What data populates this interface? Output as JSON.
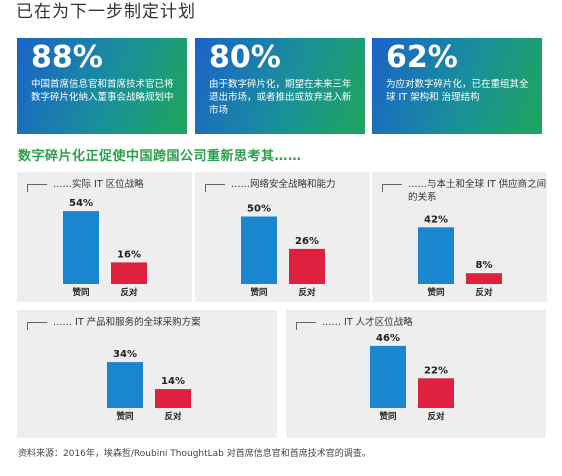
{
  "header": {
    "title": "已在为下一步制定计划"
  },
  "stats": [
    {
      "value": "88%",
      "text": "中国首席信息官和首席技术官已将数字碎片化纳入董事会战略规划中"
    },
    {
      "value": "80%",
      "text": "由于数字碎片化，期望在未来三年退出市场，或者推出或放弃进入新市场"
    },
    {
      "value": "62%",
      "text": "为应对数字碎片化，已在重组其全球 IT 架构和 治理结构"
    }
  ],
  "subtitle": "数字碎片化正促使中国跨国公司重新思考其……",
  "colors": {
    "agree": "#1a86d0",
    "oppose": "#e0203f",
    "subtitle": "#2aa14b"
  },
  "chart_data": [
    {
      "type": "bar",
      "title": "……实际 IT 区位战略",
      "categories": [
        "赞同",
        "反对"
      ],
      "values": [
        54,
        16
      ],
      "value_labels": [
        "54%",
        "16%"
      ],
      "ylim": [
        0,
        100
      ]
    },
    {
      "type": "bar",
      "title": "……网络安全战略和能力",
      "categories": [
        "赞同",
        "反对"
      ],
      "values": [
        50,
        26
      ],
      "value_labels": [
        "50%",
        "26%"
      ],
      "ylim": [
        0,
        100
      ]
    },
    {
      "type": "bar",
      "title": "……与本土和全球 IT 供应商之间的关系",
      "categories": [
        "赞同",
        "反对"
      ],
      "values": [
        42,
        8
      ],
      "value_labels": [
        "42%",
        "8%"
      ],
      "ylim": [
        0,
        100
      ]
    },
    {
      "type": "bar",
      "title": "…… IT 产品和服务的全球采购方案",
      "categories": [
        "赞同",
        "反对"
      ],
      "values": [
        34,
        14
      ],
      "value_labels": [
        "34%",
        "14%"
      ],
      "ylim": [
        0,
        100
      ]
    },
    {
      "type": "bar",
      "title": "…… IT 人才区位战略",
      "categories": [
        "赞同",
        "反对"
      ],
      "values": [
        46,
        22
      ],
      "value_labels": [
        "46%",
        "22%"
      ],
      "ylim": [
        0,
        100
      ]
    }
  ],
  "footer": {
    "source": "资料来源：2016年，埃森哲/Roubini ThoughtLab 对首席信息官和首席技术官的调查。"
  }
}
